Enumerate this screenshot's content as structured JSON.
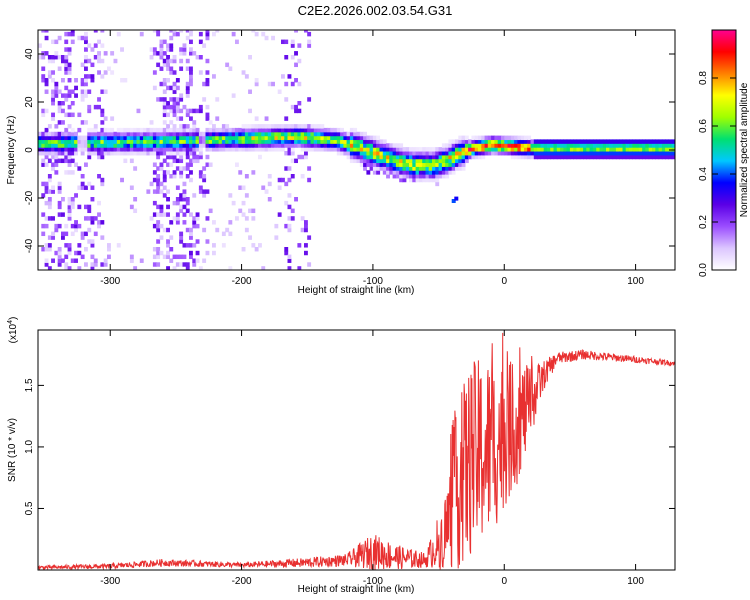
{
  "title": "C2E2.2026.002.03.54.G31",
  "chart_data": [
    {
      "type": "heatmap",
      "xlabel": "Height of straight line (km)",
      "ylabel": "Frequency (Hz)",
      "xlim": [
        -355,
        130
      ],
      "ylim": [
        -50,
        50
      ],
      "xticks": [
        -300,
        -200,
        -100,
        0,
        100
      ],
      "yticks": [
        -40,
        -20,
        0,
        20,
        40
      ],
      "colorbar": {
        "label": "Normalized spectral amplitude",
        "range": [
          0,
          1
        ],
        "ticks": [
          0.0,
          0.2,
          0.4,
          0.6,
          0.8
        ],
        "colors": [
          "#ffffff",
          "#dcc6ff",
          "#9b4dff",
          "#5a00e6",
          "#0000ff",
          "#00c8ff",
          "#00e070",
          "#a0ff00",
          "#ffff00",
          "#ff8000",
          "#ff0000",
          "#ff0090"
        ]
      },
      "ridge_center": [
        {
          "x": -355,
          "y": 2
        },
        {
          "x": -300,
          "y": 2.5
        },
        {
          "x": -250,
          "y": 3
        },
        {
          "x": -200,
          "y": 4
        },
        {
          "x": -160,
          "y": 5
        },
        {
          "x": -130,
          "y": 3.5
        },
        {
          "x": -110,
          "y": 0
        },
        {
          "x": -90,
          "y": -4
        },
        {
          "x": -70,
          "y": -7
        },
        {
          "x": -55,
          "y": -7
        },
        {
          "x": -45,
          "y": -5
        },
        {
          "x": -35,
          "y": -2
        },
        {
          "x": -25,
          "y": 0
        },
        {
          "x": -10,
          "y": 1.5
        },
        {
          "x": 0,
          "y": 1
        },
        {
          "x": 20,
          "y": 0
        },
        {
          "x": 60,
          "y": 0
        },
        {
          "x": 130,
          "y": 0
        }
      ]
    },
    {
      "type": "line",
      "xlabel": "Height of straight line (km)",
      "ylabel": "SNR (10 * v/v)",
      "y_scale_label": "(x10",
      "y_scale_exp": "4",
      "y_scale_close": ")",
      "xlim": [
        -355,
        130
      ],
      "ylim": [
        0,
        1.95
      ],
      "xticks": [
        -300,
        -200,
        -100,
        0,
        100
      ],
      "yticks": [
        0.5,
        1.0,
        1.5
      ],
      "ytick_labels": [
        "0.5",
        "1.0",
        "1.5"
      ],
      "series": [
        {
          "name": "SNR",
          "color": "#e83030",
          "envelope": [
            {
              "x": -355,
              "y": 0.02,
              "noise": 0.015
            },
            {
              "x": -300,
              "y": 0.03,
              "noise": 0.02
            },
            {
              "x": -260,
              "y": 0.06,
              "noise": 0.03
            },
            {
              "x": -200,
              "y": 0.04,
              "noise": 0.02
            },
            {
              "x": -150,
              "y": 0.06,
              "noise": 0.04
            },
            {
              "x": -120,
              "y": 0.08,
              "noise": 0.05
            },
            {
              "x": -100,
              "y": 0.15,
              "noise": 0.15
            },
            {
              "x": -80,
              "y": 0.1,
              "noise": 0.1
            },
            {
              "x": -60,
              "y": 0.08,
              "noise": 0.06
            },
            {
              "x": -45,
              "y": 0.3,
              "noise": 0.3
            },
            {
              "x": -35,
              "y": 0.7,
              "noise": 0.7
            },
            {
              "x": -25,
              "y": 0.9,
              "noise": 0.8
            },
            {
              "x": -10,
              "y": 1.0,
              "noise": 0.75
            },
            {
              "x": 0,
              "y": 1.1,
              "noise": 0.6
            },
            {
              "x": 10,
              "y": 1.2,
              "noise": 0.5
            },
            {
              "x": 20,
              "y": 1.35,
              "noise": 0.3
            },
            {
              "x": 30,
              "y": 1.58,
              "noise": 0.12
            },
            {
              "x": 40,
              "y": 1.72,
              "noise": 0.05
            },
            {
              "x": 60,
              "y": 1.75,
              "noise": 0.04
            },
            {
              "x": 90,
              "y": 1.72,
              "noise": 0.03
            },
            {
              "x": 130,
              "y": 1.68,
              "noise": 0.02
            }
          ]
        }
      ]
    }
  ]
}
